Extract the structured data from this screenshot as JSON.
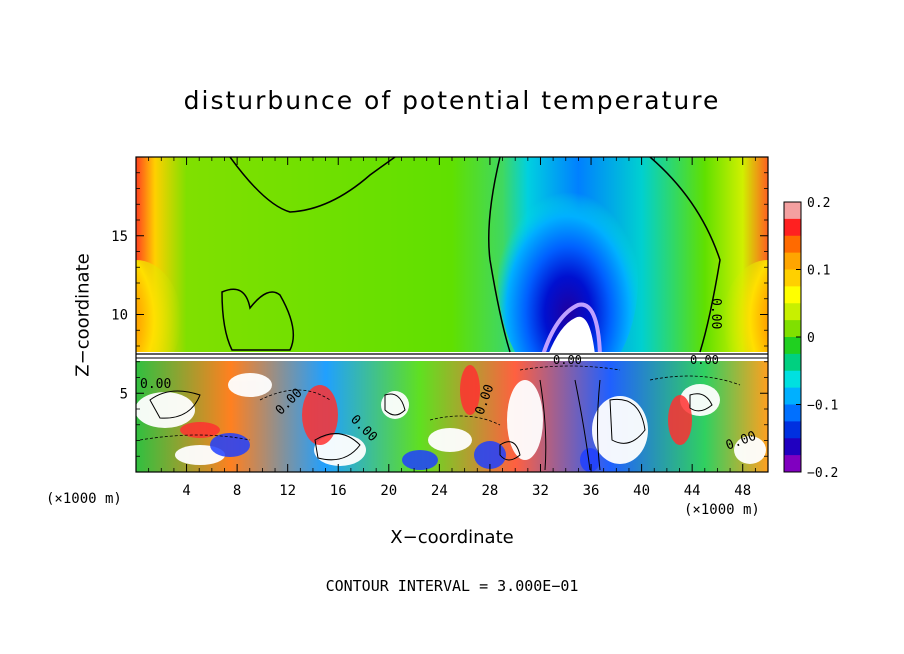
{
  "chart_data": {
    "type": "heatmap",
    "title": "disturbunce of potential temperature",
    "xlabel": "X−coordinate",
    "ylabel": "Z−coordinate",
    "x_unit_label": "(×1000 m)",
    "xlim": [
      0,
      50
    ],
    "ylim": [
      0,
      20
    ],
    "x_ticks": [
      "4",
      "8",
      "12",
      "16",
      "20",
      "24",
      "28",
      "32",
      "36",
      "40",
      "44",
      "48"
    ],
    "y_ticks": [
      "5",
      "10",
      "15"
    ],
    "colorbar": {
      "range": [
        -0.2,
        0.2
      ],
      "tick_labels": [
        "0.2",
        "0.1",
        "0",
        "−0.1",
        "−0.2"
      ],
      "colors": [
        "#f4a0a0",
        "#ff2020",
        "#ff6a00",
        "#ffa500",
        "#ffd000",
        "#ffff00",
        "#c8f000",
        "#80e000",
        "#20d020",
        "#00d080",
        "#00e0e0",
        "#00b0ff",
        "#0070ff",
        "#0030e0",
        "#2000c0",
        "#8000c0"
      ]
    },
    "contour_labels": [
      "0.00",
      "0.00",
      "0.00",
      "0.00",
      "0.00",
      "0.00",
      "0.00",
      "0.00"
    ],
    "features": [
      {
        "name": "cold anomaly",
        "x_center": 34,
        "z_center": 12,
        "value": -0.2
      },
      {
        "name": "warm anomaly left edge",
        "x_center": 0.5,
        "z_center": 9,
        "value": 0.15
      },
      {
        "name": "warm anomaly right edge",
        "x_center": 49.5,
        "z_center": 9.5,
        "value": 0.15
      },
      {
        "name": "surface warm plume",
        "x_center": 34.5,
        "z_center": 8.5,
        "value": 0.2
      }
    ],
    "contour_interval_text": "CONTOUR INTERVAL = 3.000E−01"
  }
}
